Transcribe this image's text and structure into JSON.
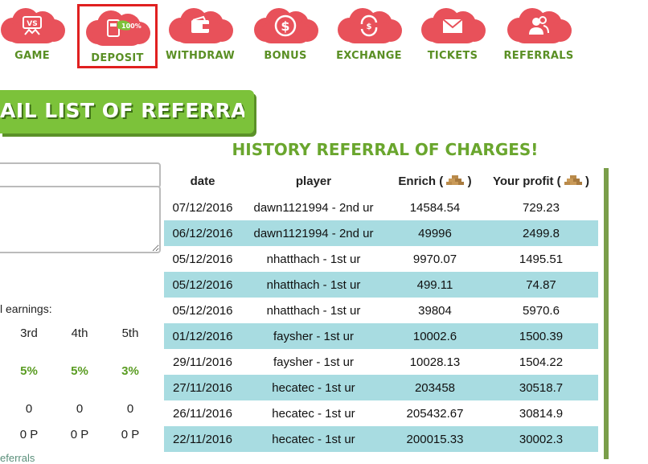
{
  "nav": {
    "items": [
      {
        "label": "GAME",
        "icon": "vs-icon"
      },
      {
        "label": "DEPOSIT",
        "icon": "deposit-card-icon",
        "badge": "100%",
        "active": true
      },
      {
        "label": "WITHDRAW",
        "icon": "wallet-icon"
      },
      {
        "label": "BONUS",
        "icon": "dollar-coin-icon"
      },
      {
        "label": "EXCHANGE",
        "icon": "exchange-icon"
      },
      {
        "label": "TICKETS",
        "icon": "envelope-icon"
      },
      {
        "label": "REFERRALS",
        "icon": "users-icon"
      }
    ]
  },
  "banner": {
    "label": "AIL LIST OF REFERRALS!"
  },
  "history": {
    "title": "HISTORY REFERRAL OF CHARGES!",
    "columns": {
      "date": "date",
      "player": "player",
      "enrich": "Enrich (",
      "enrich_close": ")",
      "profit": "Your profit (",
      "profit_close": ")"
    },
    "rows": [
      {
        "date": "07/12/2016",
        "player": "dawn1121994 - 2nd ur",
        "enrich": "14584.54",
        "profit": "729.23"
      },
      {
        "date": "06/12/2016",
        "player": "dawn1121994 - 2nd ur",
        "enrich": "49996",
        "profit": "2499.8"
      },
      {
        "date": "05/12/2016",
        "player": "nhatthach - 1st ur",
        "enrich": "9970.07",
        "profit": "1495.51"
      },
      {
        "date": "05/12/2016",
        "player": "nhatthach - 1st ur",
        "enrich": "499.11",
        "profit": "74.87"
      },
      {
        "date": "05/12/2016",
        "player": "nhatthach - 1st ur",
        "enrich": "39804",
        "profit": "5970.6"
      },
      {
        "date": "01/12/2016",
        "player": "faysher - 1st ur",
        "enrich": "10002.6",
        "profit": "1500.39"
      },
      {
        "date": "29/11/2016",
        "player": "faysher - 1st ur",
        "enrich": "10028.13",
        "profit": "1504.22"
      },
      {
        "date": "27/11/2016",
        "player": "hecatec - 1st ur",
        "enrich": "203458",
        "profit": "30518.7"
      },
      {
        "date": "26/11/2016",
        "player": "hecatec - 1st ur",
        "enrich": "205432.67",
        "profit": "30814.9"
      },
      {
        "date": "22/11/2016",
        "player": "hecatec - 1st ur",
        "enrich": "200015.33",
        "profit": "30002.3"
      }
    ]
  },
  "earnings": {
    "label": "l earnings:",
    "levels": [
      {
        "name": "3rd",
        "percent": "5%",
        "count": "0",
        "points": "0 P"
      },
      {
        "name": "4th",
        "percent": "5%",
        "count": "0",
        "points": "0 P"
      },
      {
        "name": "5th",
        "percent": "3%",
        "count": "0",
        "points": "0 P"
      }
    ]
  },
  "more_link": "eferrals",
  "colors": {
    "cloud": "#e8515a",
    "green": "#7cc23a",
    "nav_text": "#5a8f24",
    "row_alt": "#a8dce1",
    "active_border": "#e02020"
  }
}
